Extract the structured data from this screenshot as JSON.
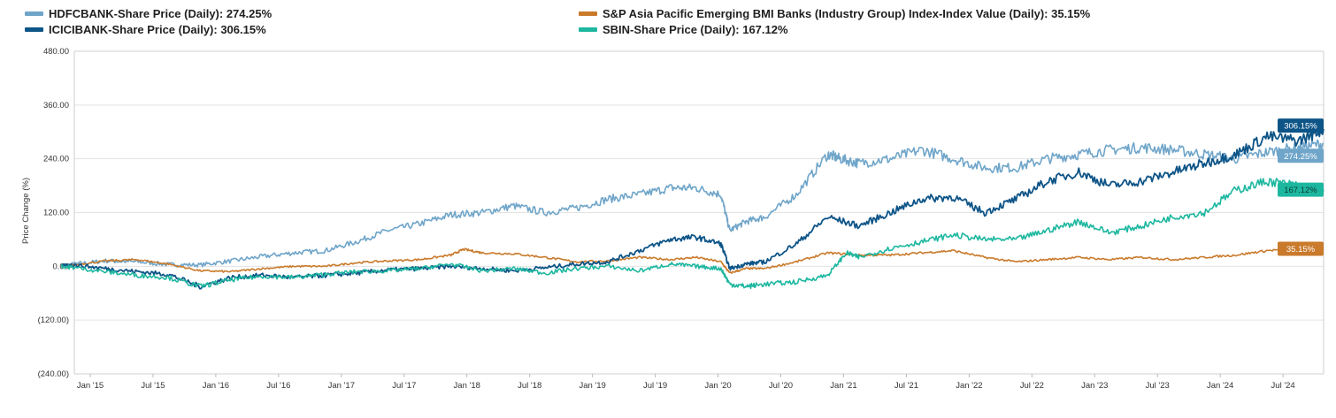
{
  "chart_data": {
    "type": "line",
    "ylabel": "Price Change (%)",
    "ylim": [
      -240,
      480
    ],
    "yticks": [
      {
        "value": 480,
        "label": "480.00"
      },
      {
        "value": 360,
        "label": "360.00"
      },
      {
        "value": 240,
        "label": "240.00"
      },
      {
        "value": 120,
        "label": "120.00"
      },
      {
        "value": 0,
        "label": "0.00"
      },
      {
        "value": -120,
        "label": "(120.00)"
      },
      {
        "value": -240,
        "label": "(240.00)"
      }
    ],
    "x_range": [
      2015.0,
      2024.95
    ],
    "xticks": [
      {
        "value": 2015.0,
        "label": "Jan '15"
      },
      {
        "value": 2015.5,
        "label": "Jul '15"
      },
      {
        "value": 2016.0,
        "label": "Jan '16"
      },
      {
        "value": 2016.5,
        "label": "Jul '16"
      },
      {
        "value": 2017.0,
        "label": "Jan '17"
      },
      {
        "value": 2017.5,
        "label": "Jul '17"
      },
      {
        "value": 2018.0,
        "label": "Jan '18"
      },
      {
        "value": 2018.5,
        "label": "Jul '18"
      },
      {
        "value": 2019.0,
        "label": "Jan '19"
      },
      {
        "value": 2019.5,
        "label": "Jul '19"
      },
      {
        "value": 2020.0,
        "label": "Jan '20"
      },
      {
        "value": 2020.5,
        "label": "Jul '20"
      },
      {
        "value": 2021.0,
        "label": "Jan '21"
      },
      {
        "value": 2021.5,
        "label": "Jul '21"
      },
      {
        "value": 2022.0,
        "label": "Jan '22"
      },
      {
        "value": 2022.5,
        "label": "Jul '22"
      },
      {
        "value": 2023.0,
        "label": "Jan '23"
      },
      {
        "value": 2023.5,
        "label": "Jul '23"
      },
      {
        "value": 2024.0,
        "label": "Jan '24"
      },
      {
        "value": 2024.5,
        "label": "Jul '24"
      }
    ],
    "series": [
      {
        "name": "HDFCBANK-Share Price (Daily): 274.25%",
        "short": "HDFCBANK",
        "color": "#6fa5c9",
        "end_label": "274.25%",
        "x": [
          2014.9,
          2015.0,
          2015.25,
          2015.5,
          2015.75,
          2016.0,
          2016.25,
          2016.5,
          2016.75,
          2017.0,
          2017.25,
          2017.5,
          2017.75,
          2018.0,
          2018.25,
          2018.5,
          2018.75,
          2019.0,
          2019.25,
          2019.5,
          2019.75,
          2019.95,
          2020.15,
          2020.22,
          2020.35,
          2020.5,
          2020.75,
          2021.0,
          2021.1,
          2021.25,
          2021.5,
          2021.75,
          2022.0,
          2022.25,
          2022.5,
          2022.75,
          2023.0,
          2023.25,
          2023.5,
          2023.75,
          2024.0,
          2024.25,
          2024.5,
          2024.75,
          2024.95
        ],
        "y": [
          0,
          5,
          12,
          10,
          4,
          3,
          12,
          22,
          30,
          35,
          55,
          80,
          95,
          115,
          120,
          135,
          120,
          130,
          150,
          160,
          175,
          175,
          160,
          80,
          100,
          110,
          160,
          250,
          240,
          230,
          240,
          260,
          240,
          220,
          220,
          240,
          250,
          260,
          265,
          260,
          250,
          240,
          255,
          265,
          274.25
        ]
      },
      {
        "name": "S&P Asia Pacific Emerging BMI Banks (Industry Group) Index-Index Value (Daily): 35.15%",
        "short": "S&P Asia Pacific Emerging BMI Banks",
        "color": "#c97a2b",
        "end_label": "35.15%",
        "x": [
          2014.9,
          2015.0,
          2015.25,
          2015.5,
          2015.75,
          2016.0,
          2016.25,
          2016.5,
          2016.75,
          2017.0,
          2017.25,
          2017.5,
          2017.75,
          2018.0,
          2018.1,
          2018.25,
          2018.5,
          2018.75,
          2019.0,
          2019.25,
          2019.5,
          2019.75,
          2019.95,
          2020.15,
          2020.22,
          2020.35,
          2020.5,
          2020.75,
          2021.0,
          2021.25,
          2021.5,
          2021.75,
          2022.0,
          2022.25,
          2022.5,
          2022.75,
          2023.0,
          2023.25,
          2023.5,
          2023.75,
          2024.0,
          2024.25,
          2024.5,
          2024.75,
          2024.95
        ],
        "y": [
          0,
          3,
          12,
          15,
          5,
          -10,
          -12,
          -5,
          0,
          0,
          8,
          12,
          15,
          25,
          38,
          30,
          28,
          20,
          10,
          12,
          20,
          15,
          20,
          10,
          -15,
          -5,
          -5,
          10,
          30,
          25,
          25,
          30,
          35,
          20,
          10,
          15,
          20,
          15,
          20,
          15,
          20,
          25,
          35,
          40,
          35.15
        ]
      },
      {
        "name": "ICICIBANK-Share Price (Daily): 306.15%",
        "short": "ICICIBANK",
        "color": "#0d5487",
        "end_label": "306.15%",
        "x": [
          2014.9,
          2015.0,
          2015.25,
          2015.5,
          2015.75,
          2016.0,
          2016.25,
          2016.5,
          2016.75,
          2017.0,
          2017.25,
          2017.5,
          2017.75,
          2018.0,
          2018.25,
          2018.5,
          2018.75,
          2019.0,
          2019.25,
          2019.5,
          2019.75,
          2019.95,
          2020.15,
          2020.22,
          2020.35,
          2020.5,
          2020.75,
          2021.0,
          2021.25,
          2021.5,
          2021.75,
          2022.0,
          2022.25,
          2022.5,
          2022.75,
          2023.0,
          2023.25,
          2023.5,
          2023.75,
          2024.0,
          2024.25,
          2024.5,
          2024.75,
          2024.95
        ],
        "y": [
          0,
          3,
          -5,
          -12,
          -18,
          -45,
          -25,
          -20,
          -25,
          -20,
          -15,
          -8,
          -5,
          0,
          -5,
          -10,
          -3,
          5,
          10,
          35,
          60,
          65,
          50,
          -5,
          5,
          10,
          50,
          110,
          90,
          120,
          150,
          155,
          120,
          150,
          190,
          210,
          180,
          190,
          210,
          230,
          250,
          290,
          280,
          306.15
        ]
      },
      {
        "name": "SBIN-Share Price (Daily): 167.12%",
        "short": "SBIN",
        "color": "#1db7a0",
        "end_label": "167.12%",
        "x": [
          2014.9,
          2015.0,
          2015.25,
          2015.5,
          2015.75,
          2016.0,
          2016.25,
          2016.5,
          2016.75,
          2017.0,
          2017.25,
          2017.5,
          2017.75,
          2018.0,
          2018.25,
          2018.5,
          2018.75,
          2019.0,
          2019.25,
          2019.5,
          2019.75,
          2019.95,
          2020.15,
          2020.22,
          2020.35,
          2020.5,
          2020.75,
          2021.0,
          2021.15,
          2021.25,
          2021.5,
          2021.75,
          2022.0,
          2022.25,
          2022.5,
          2022.75,
          2023.0,
          2023.25,
          2023.5,
          2023.75,
          2024.0,
          2024.25,
          2024.5,
          2024.75,
          2024.95
        ],
        "y": [
          0,
          -3,
          -12,
          -20,
          -25,
          -45,
          -30,
          -22,
          -25,
          -18,
          -12,
          -10,
          -5,
          5,
          -10,
          -5,
          -15,
          -5,
          0,
          -10,
          5,
          0,
          -5,
          -40,
          -45,
          -40,
          -35,
          -20,
          30,
          20,
          40,
          55,
          70,
          60,
          60,
          80,
          100,
          75,
          90,
          110,
          120,
          170,
          190,
          180,
          167.12
        ]
      }
    ]
  }
}
